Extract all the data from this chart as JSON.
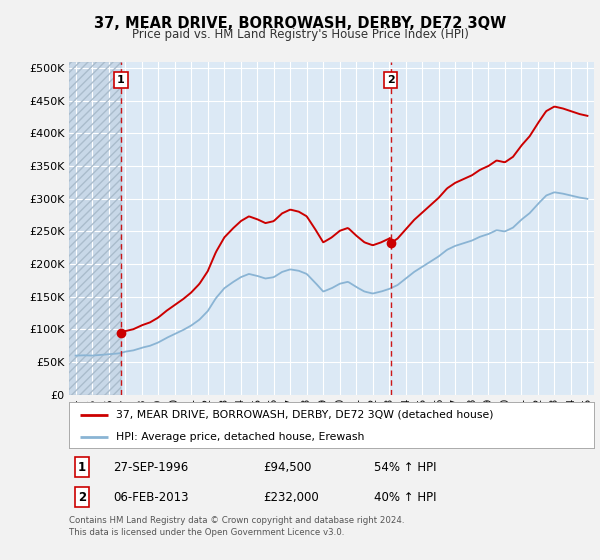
{
  "title": "37, MEAR DRIVE, BORROWASH, DERBY, DE72 3QW",
  "subtitle": "Price paid vs. HM Land Registry's House Price Index (HPI)",
  "hpi_label": "HPI: Average price, detached house, Erewash",
  "property_label": "37, MEAR DRIVE, BORROWASH, DERBY, DE72 3QW (detached house)",
  "sale1_date": "27-SEP-1996",
  "sale1_price": 94500,
  "sale1_hpi": "54% ↑ HPI",
  "sale2_date": "06-FEB-2013",
  "sale2_price": 232000,
  "sale2_hpi": "40% ↑ HPI",
  "footer": "Contains HM Land Registry data © Crown copyright and database right 2024.\nThis data is licensed under the Open Government Licence v3.0.",
  "ylim": [
    0,
    510000
  ],
  "yticks": [
    0,
    50000,
    100000,
    150000,
    200000,
    250000,
    300000,
    350000,
    400000,
    450000,
    500000
  ],
  "hpi_color": "#8ab4d4",
  "price_color": "#cc0000",
  "background_color": "#f2f2f2",
  "plot_bg_color": "#dce9f5",
  "hatch_color": "#c8d8e8",
  "sale1_year": 1996.75,
  "sale2_year": 2013.08,
  "xmin": 1993.6,
  "xmax": 2025.4
}
